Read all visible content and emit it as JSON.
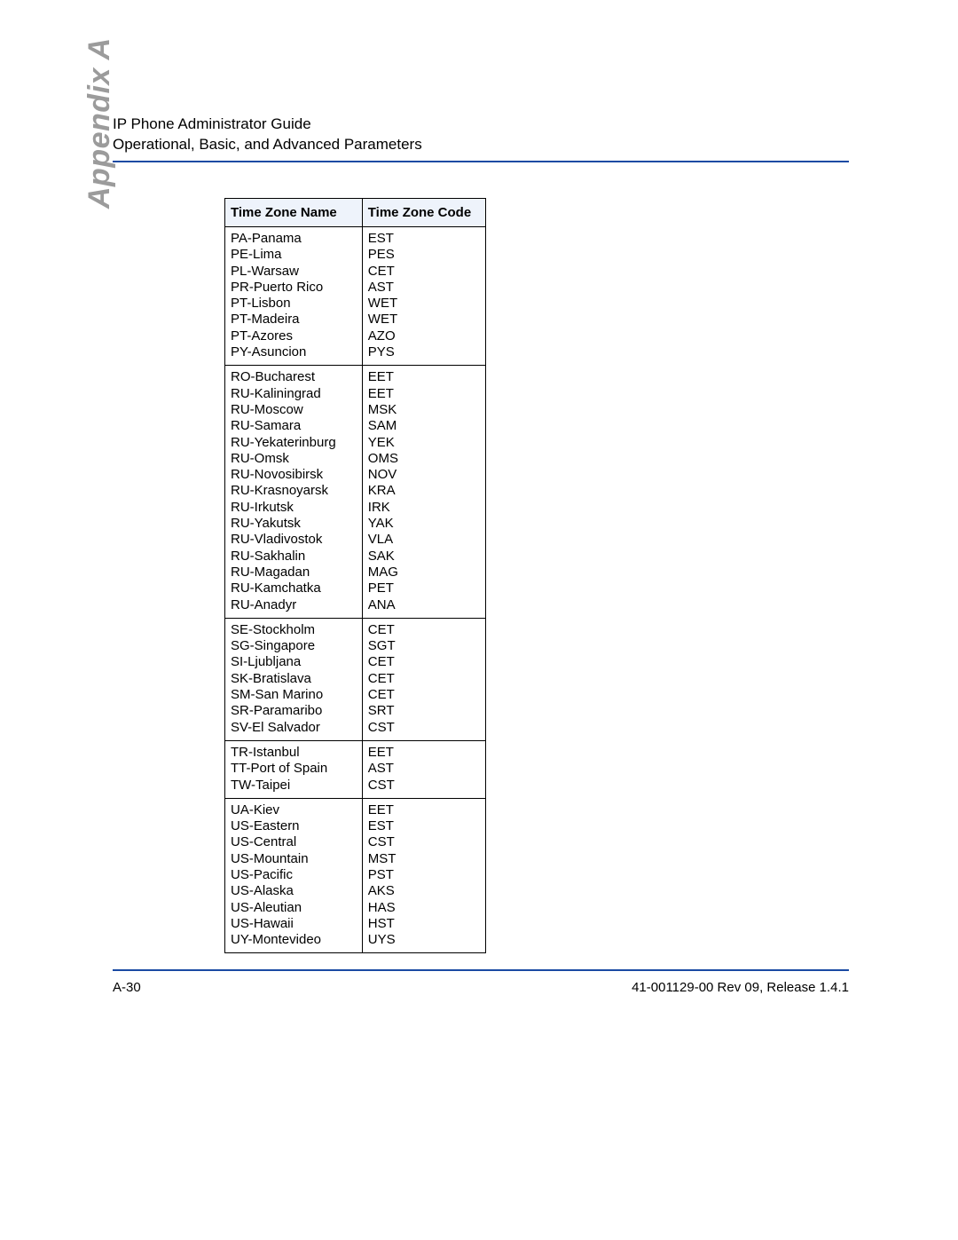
{
  "header": {
    "line1": "IP Phone Administrator Guide",
    "line2": "Operational, Basic, and Advanced Parameters"
  },
  "sidebar": {
    "label": "Appendix A"
  },
  "colors": {
    "rule": "#1a4aa3",
    "header_bg": "#eef3fb",
    "border": "#000000",
    "text": "#000000",
    "sidebar_text": "#9b9b9b"
  },
  "fonts": {
    "body_size_pt": 11,
    "header_size_pt": 11,
    "sidebar_size_pt": 26
  },
  "table": {
    "columns": [
      "Time Zone Name",
      "Time Zone Code"
    ],
    "groups": [
      [
        {
          "name": "PA-Panama",
          "code": "EST"
        },
        {
          "name": "PE-Lima",
          "code": "PES"
        },
        {
          "name": "PL-Warsaw",
          "code": "CET"
        },
        {
          "name": "PR-Puerto Rico",
          "code": "AST"
        },
        {
          "name": "PT-Lisbon",
          "code": "WET"
        },
        {
          "name": "PT-Madeira",
          "code": "WET"
        },
        {
          "name": "PT-Azores",
          "code": "AZO"
        },
        {
          "name": "PY-Asuncion",
          "code": "PYS"
        }
      ],
      [
        {
          "name": "RO-Bucharest",
          "code": "EET"
        },
        {
          "name": "RU-Kaliningrad",
          "code": "EET"
        },
        {
          "name": "RU-Moscow",
          "code": "MSK"
        },
        {
          "name": "RU-Samara",
          "code": "SAM"
        },
        {
          "name": "RU-Yekaterinburg",
          "code": "YEK"
        },
        {
          "name": "RU-Omsk",
          "code": "OMS"
        },
        {
          "name": "RU-Novosibirsk",
          "code": "NOV"
        },
        {
          "name": "RU-Krasnoyarsk",
          "code": "KRA"
        },
        {
          "name": "RU-Irkutsk",
          "code": "IRK"
        },
        {
          "name": "RU-Yakutsk",
          "code": "YAK"
        },
        {
          "name": "RU-Vladivostok",
          "code": "VLA"
        },
        {
          "name": "RU-Sakhalin",
          "code": "SAK"
        },
        {
          "name": "RU-Magadan",
          "code": "MAG"
        },
        {
          "name": "RU-Kamchatka",
          "code": "PET"
        },
        {
          "name": "RU-Anadyr",
          "code": "ANA"
        }
      ],
      [
        {
          "name": "SE-Stockholm",
          "code": "CET"
        },
        {
          "name": "SG-Singapore",
          "code": "SGT"
        },
        {
          "name": "SI-Ljubljana",
          "code": "CET"
        },
        {
          "name": "SK-Bratislava",
          "code": "CET"
        },
        {
          "name": "SM-San Marino",
          "code": "CET"
        },
        {
          "name": "SR-Paramaribo",
          "code": "SRT"
        },
        {
          "name": "SV-El Salvador",
          "code": "CST"
        }
      ],
      [
        {
          "name": "TR-Istanbul",
          "code": "EET"
        },
        {
          "name": "TT-Port of Spain",
          "code": "AST"
        },
        {
          "name": "TW-Taipei",
          "code": "CST"
        }
      ],
      [
        {
          "name": "UA-Kiev",
          "code": "EET"
        },
        {
          "name": "US-Eastern",
          "code": "EST"
        },
        {
          "name": "US-Central",
          "code": "CST"
        },
        {
          "name": "US-Mountain",
          "code": "MST"
        },
        {
          "name": "US-Pacific",
          "code": "PST"
        },
        {
          "name": "US-Alaska",
          "code": "AKS"
        },
        {
          "name": "US-Aleutian",
          "code": "HAS"
        },
        {
          "name": "US-Hawaii",
          "code": "HST"
        },
        {
          "name": "UY-Montevideo",
          "code": "UYS"
        }
      ]
    ]
  },
  "footer": {
    "left": "A-30",
    "right": "41-001129-00 Rev 09, Release 1.4.1"
  }
}
